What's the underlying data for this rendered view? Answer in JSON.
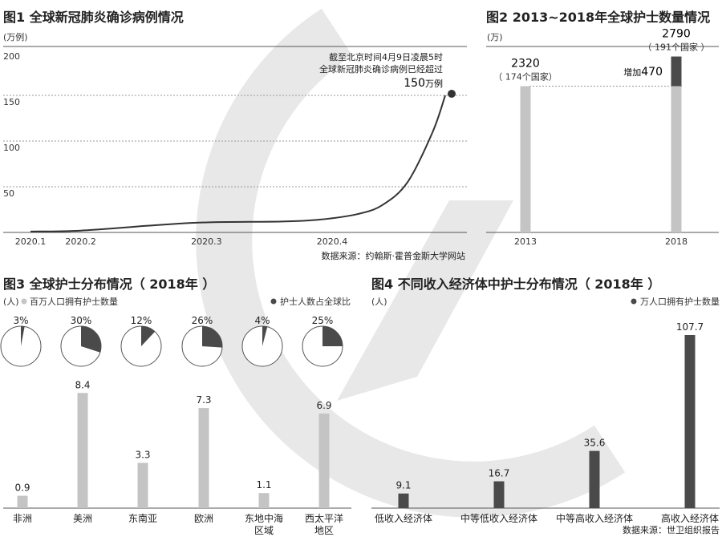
{
  "watermark_color": "#e8e8e8",
  "colors": {
    "line": "#333333",
    "bar_light": "#c4c4c4",
    "bar_dark": "#4a4a4a",
    "grid": "#9a9a9a",
    "pie_fill": "#4a4a4a"
  },
  "chart_data": [
    {
      "type": "line",
      "title": "图1 全球新冠肺炎确诊病例情况",
      "unit": "(万例)",
      "yticks": [
        200,
        150,
        100,
        50
      ],
      "ylim": [
        0,
        200
      ],
      "xticks": [
        "2020.1",
        "2020.2",
        "2020.3",
        "2020.4"
      ],
      "x": [
        1.0,
        1.4,
        2.0,
        2.4,
        3.0,
        3.3,
        3.6,
        3.8,
        4.0,
        4.2,
        4.3
      ],
      "y": [
        1,
        2,
        8,
        11,
        12,
        14,
        20,
        30,
        55,
        110,
        150
      ],
      "annotation": {
        "line1": "截至北京时间4月9日凌晨5时",
        "line2": "全球新冠肺炎确诊病例已经超过",
        "value": "150",
        "suffix": "万例"
      },
      "source": "数据来源：约翰斯·霍普金斯大学网站"
    },
    {
      "type": "bar",
      "title": "图2 2013~2018年全球护士数量情况",
      "unit": "(万)",
      "ylim": [
        0,
        3000
      ],
      "categories": [
        "2013",
        "2018"
      ],
      "values": [
        2320,
        2790
      ],
      "sublabels": [
        "（ 174个国家）",
        "（ 191个国家 ）"
      ],
      "increase_label": "增加",
      "increase_value": "470"
    },
    {
      "type": "bar",
      "title": "图3  全球护士分布情况（ 2018年 ）",
      "unit": "(人)",
      "legend_bar": "百万人口拥有护士数量",
      "legend_pie": "护士人数占全球比",
      "categories": [
        "非洲",
        "美洲",
        "东南亚",
        "欧洲",
        "东地中海区域",
        "西太平洋地区"
      ],
      "category_lines": [
        [
          "非洲"
        ],
        [
          "美洲"
        ],
        [
          "东南亚"
        ],
        [
          "欧洲"
        ],
        [
          "东地中海",
          "区域"
        ],
        [
          "西太平洋",
          "地区"
        ]
      ],
      "values": [
        0.9,
        8.4,
        3.3,
        7.3,
        1.1,
        6.9
      ],
      "ylim": [
        0,
        9
      ],
      "pie_labels": [
        "3%",
        "30%",
        "12%",
        "26%",
        "4%",
        "25%"
      ],
      "pie_values": [
        3,
        30,
        12,
        26,
        4,
        25
      ]
    },
    {
      "type": "bar",
      "title": "图4  不同收入经济体中护士分布情况（ 2018年 ）",
      "unit": "(人)",
      "legend": "万人口拥有护士数量",
      "categories": [
        "低收入经济体",
        "中等低收入经济体",
        "中等高收入经济体",
        "高收入经济体"
      ],
      "values": [
        9.1,
        16.7,
        35.6,
        107.7
      ],
      "ylim": [
        0,
        110
      ],
      "source": "数据来源：世卫组织报告"
    }
  ]
}
